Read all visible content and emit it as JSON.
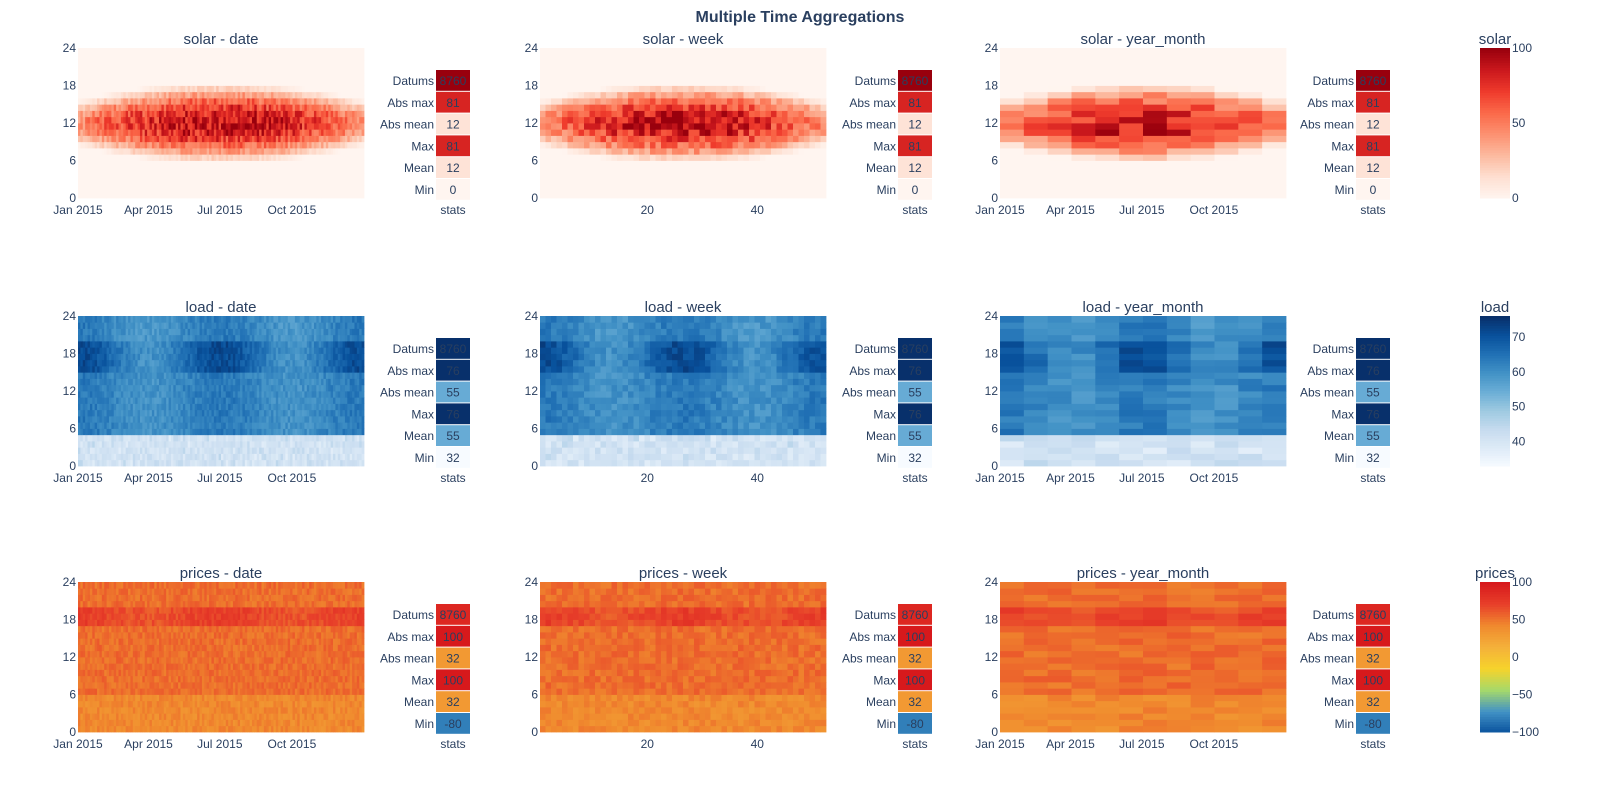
{
  "figure": {
    "title": "Multiple Time Aggregations"
  },
  "colors": {
    "solar_scale": [
      "#fff5f0",
      "#fee0d2",
      "#fcbba1",
      "#fc9272",
      "#fb6a4a",
      "#ef3b2c",
      "#cb181d",
      "#99000d"
    ],
    "load_scale": [
      "#f7fbff",
      "#deebf7",
      "#c6dbef",
      "#9ecae1",
      "#6baed6",
      "#4292c6",
      "#2171b5",
      "#08519c",
      "#08306b"
    ],
    "prices_scale": [
      "#08519c",
      "#4292c6",
      "#a6d96a",
      "#f6d32b",
      "#f4b13a",
      "#f08a2e",
      "#e8402a",
      "#d7191c"
    ]
  },
  "chart_data": {
    "type": "heatmap",
    "title": "Multiple Time Aggregations",
    "variables": [
      {
        "name": "solar",
        "colorbar": {
          "title": "solar",
          "range": [
            0,
            100
          ],
          "ticks": [
            "100",
            "50",
            "0"
          ]
        },
        "stats": {
          "labels": [
            "Datums",
            "Abs max",
            "Abs mean",
            "Max",
            "Mean",
            "Min"
          ],
          "values": [
            8760,
            81,
            12,
            81,
            12,
            0
          ],
          "xlabel": "stats"
        }
      },
      {
        "name": "load",
        "colorbar": {
          "title": "load",
          "range": [
            33,
            76
          ],
          "ticks": [
            "70",
            "60",
            "50",
            "40"
          ]
        },
        "stats": {
          "labels": [
            "Datums",
            "Abs max",
            "Abs mean",
            "Max",
            "Mean",
            "Min"
          ],
          "values": [
            8760,
            76,
            55,
            76,
            55,
            32
          ],
          "xlabel": "stats"
        }
      },
      {
        "name": "prices",
        "colorbar": {
          "title": "prices",
          "range": [
            -100,
            100
          ],
          "ticks": [
            "100",
            "50",
            "0",
            "−50",
            "−100"
          ]
        },
        "stats": {
          "labels": [
            "Datums",
            "Abs max",
            "Abs mean",
            "Max",
            "Mean",
            "Min"
          ],
          "values": [
            8760,
            100,
            32,
            100,
            32,
            -80
          ],
          "xlabel": "stats"
        }
      }
    ],
    "subplots": [
      {
        "title": "solar - date",
        "var": "solar",
        "agg": "date",
        "x_ticks": [
          "Jan 2015",
          "Apr 2015",
          "Jul 2015",
          "Oct 2015"
        ],
        "y_ticks": [
          "0",
          "6",
          "12",
          "18",
          "24"
        ],
        "y_range": [
          0,
          24
        ]
      },
      {
        "title": "solar - week",
        "var": "solar",
        "agg": "week",
        "x_ticks": [
          "20",
          "40"
        ],
        "y_ticks": [
          "0",
          "6",
          "12",
          "18",
          "24"
        ],
        "y_range": [
          0,
          24
        ]
      },
      {
        "title": "solar - year_month",
        "var": "solar",
        "agg": "year_month",
        "x_ticks": [
          "Jan 2015",
          "Apr 2015",
          "Jul 2015",
          "Oct 2015"
        ],
        "y_ticks": [
          "0",
          "6",
          "12",
          "18",
          "24"
        ],
        "y_range": [
          0,
          24
        ]
      },
      {
        "title": "load - date",
        "var": "load",
        "agg": "date",
        "x_ticks": [
          "Jan 2015",
          "Apr 2015",
          "Jul 2015",
          "Oct 2015"
        ],
        "y_ticks": [
          "0",
          "6",
          "12",
          "18",
          "24"
        ],
        "y_range": [
          0,
          24
        ]
      },
      {
        "title": "load - week",
        "var": "load",
        "agg": "week",
        "x_ticks": [
          "20",
          "40"
        ],
        "y_ticks": [
          "0",
          "6",
          "12",
          "18",
          "24"
        ],
        "y_range": [
          0,
          24
        ]
      },
      {
        "title": "load - year_month",
        "var": "load",
        "agg": "year_month",
        "x_ticks": [
          "Jan 2015",
          "Apr 2015",
          "Jul 2015",
          "Oct 2015"
        ],
        "y_ticks": [
          "0",
          "6",
          "12",
          "18",
          "24"
        ],
        "y_range": [
          0,
          24
        ]
      },
      {
        "title": "prices - date",
        "var": "prices",
        "agg": "date",
        "x_ticks": [
          "Jan 2015",
          "Apr 2015",
          "Jul 2015",
          "Oct 2015"
        ],
        "y_ticks": [
          "0",
          "6",
          "12",
          "18",
          "24"
        ],
        "y_range": [
          0,
          24
        ]
      },
      {
        "title": "prices - week",
        "var": "prices",
        "agg": "week",
        "x_ticks": [
          "20",
          "40"
        ],
        "y_ticks": [
          "0",
          "6",
          "12",
          "18",
          "24"
        ],
        "y_range": [
          0,
          24
        ]
      },
      {
        "title": "prices - year_month",
        "var": "prices",
        "agg": "year_month",
        "x_ticks": [
          "Jan 2015",
          "Apr 2015",
          "Jul 2015",
          "Oct 2015"
        ],
        "y_ticks": [
          "0",
          "6",
          "12",
          "18",
          "24"
        ],
        "y_range": [
          0,
          24
        ]
      }
    ]
  }
}
